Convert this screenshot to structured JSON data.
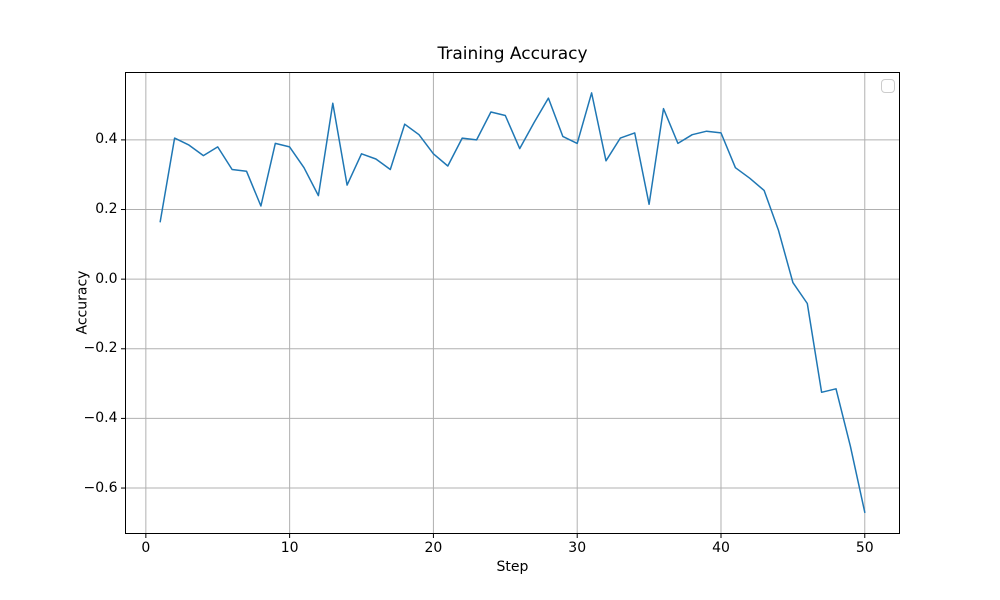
{
  "chart_data": {
    "type": "line",
    "title": "Training Accuracy",
    "xlabel": "Step",
    "ylabel": "Accuracy",
    "x": [
      1,
      2,
      3,
      4,
      5,
      6,
      7,
      8,
      9,
      10,
      11,
      12,
      13,
      14,
      15,
      16,
      17,
      18,
      19,
      20,
      21,
      22,
      23,
      24,
      25,
      26,
      27,
      28,
      29,
      30,
      31,
      32,
      33,
      34,
      35,
      36,
      37,
      38,
      39,
      40,
      41,
      42,
      43,
      44,
      45,
      46,
      47,
      48,
      49,
      50
    ],
    "y": [
      0.165,
      0.405,
      0.385,
      0.355,
      0.38,
      0.315,
      0.31,
      0.21,
      0.39,
      0.38,
      0.32,
      0.24,
      0.505,
      0.27,
      0.36,
      0.345,
      0.315,
      0.445,
      0.415,
      0.36,
      0.325,
      0.405,
      0.4,
      0.48,
      0.47,
      0.375,
      0.45,
      0.52,
      0.41,
      0.39,
      0.535,
      0.34,
      0.405,
      0.42,
      0.215,
      0.49,
      0.39,
      0.415,
      0.425,
      0.42,
      0.32,
      0.29,
      0.255,
      0.14,
      -0.01,
      -0.07,
      -0.325,
      -0.315,
      -0.48,
      -0.67
    ],
    "xlim": [
      -1.45,
      52.45
    ],
    "ylim": [
      -0.732,
      0.595
    ],
    "xticks": {
      "values": [
        0,
        10,
        20,
        30,
        40,
        50
      ],
      "labels": [
        "0",
        "10",
        "20",
        "30",
        "40",
        "50"
      ]
    },
    "yticks": {
      "values": [
        -0.6,
        -0.4,
        -0.2,
        0.0,
        0.2,
        0.4
      ],
      "labels": [
        "−0.6",
        "−0.4",
        "−0.2",
        "0.0",
        "0.2",
        "0.4"
      ]
    },
    "grid": true,
    "legend": {
      "position": "upper right",
      "entries": [],
      "empty_box": true
    },
    "line_color": "#1f77b4",
    "grid_color": "#b0b0b0",
    "spine_color": "#000000",
    "legend_border_color": "#cccccc",
    "background": "#ffffff"
  }
}
